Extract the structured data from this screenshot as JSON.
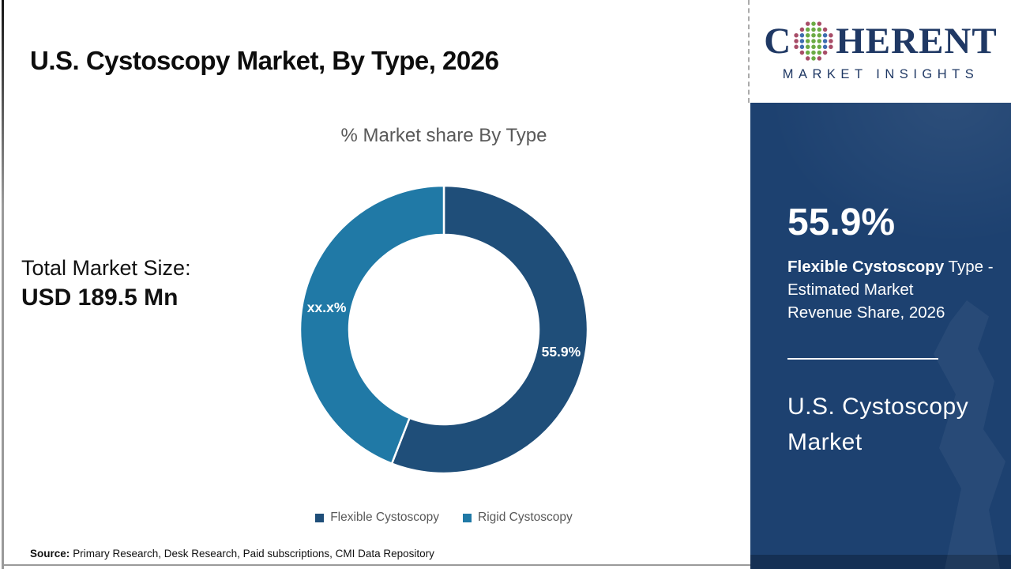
{
  "main": {
    "title": "U.S. Cystoscopy Market, By Type, 2026",
    "total_market": {
      "label": "Total Market Size:",
      "value": "USD 189.5 Mn"
    },
    "source": {
      "label": "Source:",
      "text": "Primary Research, Desk Research, Paid subscriptions, CMI Data Repository"
    }
  },
  "chart_data": {
    "type": "pie",
    "subtype": "donut",
    "title": "% Market share By Type",
    "categories": [
      "Flexible Cystoscopy",
      "Rigid Cystoscopy"
    ],
    "values": [
      55.9,
      44.1
    ],
    "slice_labels": [
      "55.9%",
      "xx.x%"
    ],
    "colors": [
      "#1F4E79",
      "#2079A6"
    ],
    "start_angle_deg": 0,
    "direction": "clockwise",
    "legend_position": "bottom",
    "label_color": "#ffffff"
  },
  "sidebar": {
    "logo": {
      "prefix": "C",
      "suffix": "HERENT",
      "subtitle": "MARKET INSIGHTS",
      "globe_colors": {
        "green": "#6CAB44",
        "blue": "#3E6EB0",
        "red": "#A84D68"
      }
    },
    "stat": {
      "value": "55.9%",
      "line1_bold": "Flexible Cystoscopy",
      "line1_rest": " Type -",
      "line2": "Estimated Market",
      "line3": "Revenue Share, 2026"
    },
    "panel_title": "U.S. Cystoscopy Market",
    "colors": {
      "panel": "#1D4170",
      "logo_text": "#1F3864"
    }
  }
}
